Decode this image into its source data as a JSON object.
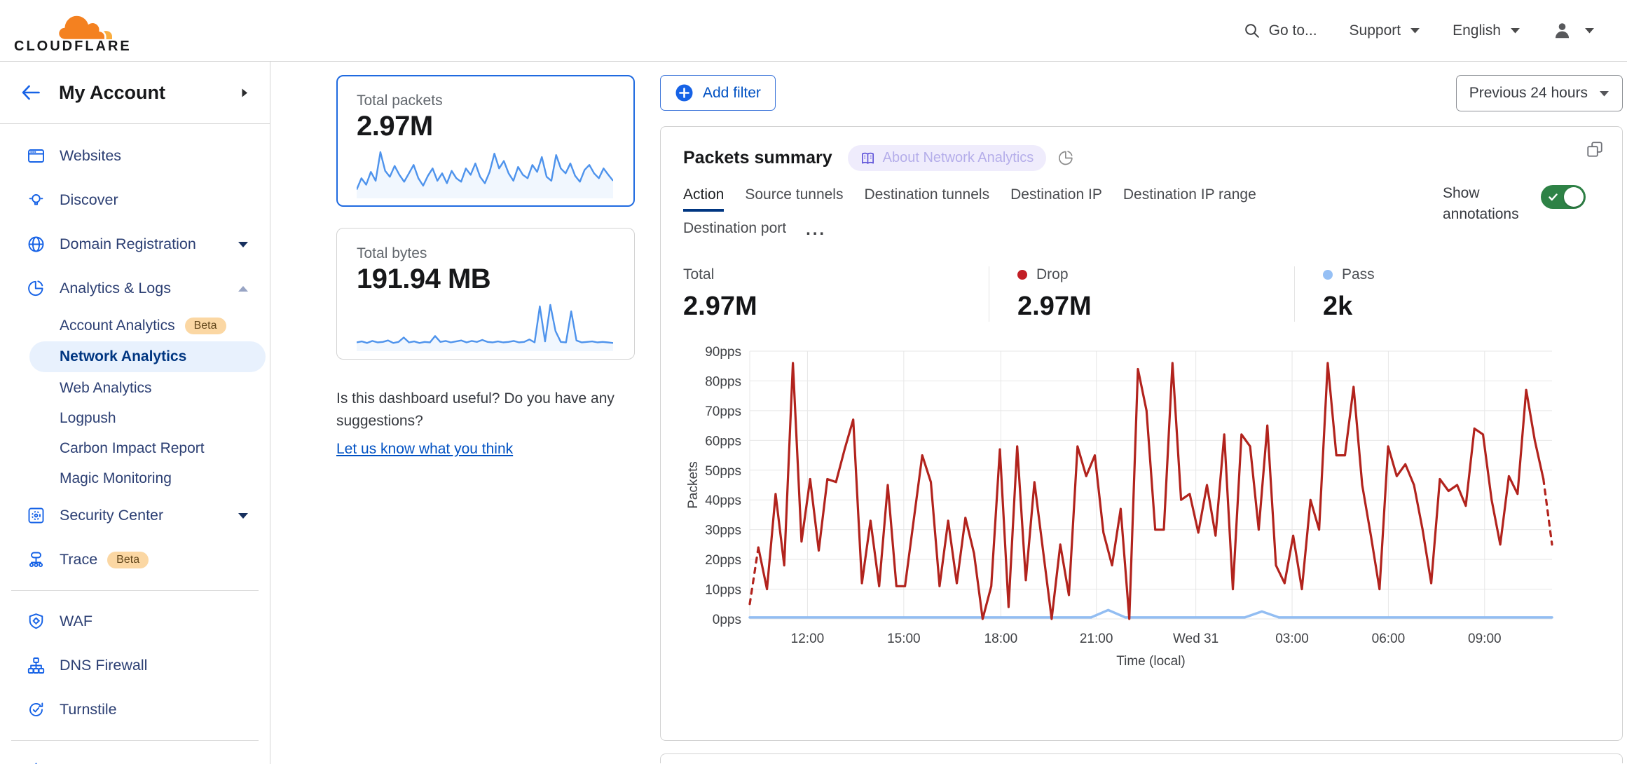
{
  "colors": {
    "accent": "#0051c3",
    "accent_bright": "#1662e6",
    "nav_text": "#2c3f73",
    "active_bg": "#e8f1fd",
    "active_text": "#003681",
    "beta_bg": "#fbd7a3",
    "beta_text": "#63481d",
    "drop": "#b2231d",
    "pass": "#92bdf2",
    "toggle_green": "#2e8246",
    "spark": "#4e93ec",
    "badge_bg": "#efecfc",
    "badge_text": "#b5aeea",
    "badge_icon": "#5c50d8",
    "border": "#d5d5d5",
    "card_border": "#d2d2d2"
  },
  "header": {
    "logo_text": "CLOUDFLARE",
    "goto_label": "Go to...",
    "support_label": "Support",
    "language_label": "English"
  },
  "sidebar": {
    "account_label": "My Account",
    "items": [
      {
        "label": "Websites"
      },
      {
        "label": "Discover"
      },
      {
        "label": "Domain Registration"
      },
      {
        "label": "Analytics & Logs"
      },
      {
        "label": "Security Center"
      },
      {
        "label": "Trace",
        "badge": "Beta"
      },
      {
        "label": "WAF"
      },
      {
        "label": "DNS Firewall"
      },
      {
        "label": "Turnstile"
      }
    ],
    "analytics_children": [
      {
        "label": "Account Analytics",
        "badge": "Beta"
      },
      {
        "label": "Network Analytics",
        "active": true
      },
      {
        "label": "Web Analytics"
      },
      {
        "label": "Logpush"
      },
      {
        "label": "Carbon Impact Report"
      },
      {
        "label": "Magic Monitoring"
      }
    ]
  },
  "overview": {
    "total_packets": {
      "label": "Total packets",
      "value": "2.97M"
    },
    "total_bytes": {
      "label": "Total bytes",
      "value": "191.94 MB"
    },
    "feedback_question": "Is this dashboard useful? Do you have any suggestions?",
    "feedback_link": "Let us know what you think"
  },
  "main": {
    "add_filter_label": "Add filter",
    "time_range_label": "Previous 24 hours",
    "card_title": "Packets summary",
    "about_badge": "About Network Analytics",
    "tabs": [
      "Action",
      "Source tunnels",
      "Destination tunnels",
      "Destination IP",
      "Destination IP range",
      "Destination port"
    ],
    "more_label": "...",
    "show_annotations_label": "Show annotations",
    "annotations_on": true,
    "stats": [
      {
        "label": "Total",
        "value": "2.97M"
      },
      {
        "label": "Drop",
        "value": "2.97M",
        "dot": "#c21e25"
      },
      {
        "label": "Pass",
        "value": "2k",
        "dot": "#96c0f5"
      }
    ]
  },
  "chart_data": [
    {
      "name": "packets-summary-chart",
      "type": "line",
      "title": "Packets summary",
      "xlabel": "Time (local)",
      "ylabel": "Packets",
      "unit": "pps",
      "ylim": [
        0,
        90
      ],
      "ytick_step": 10,
      "grid": true,
      "legend_position": "none",
      "x_ticks": [
        {
          "label": "12:00",
          "f": 0.072
        },
        {
          "label": "15:00",
          "f": 0.192
        },
        {
          "label": "18:00",
          "f": 0.313
        },
        {
          "label": "21:00",
          "f": 0.432
        },
        {
          "label": "Wed 31",
          "f": 0.556
        },
        {
          "label": "03:00",
          "f": 0.676
        },
        {
          "label": "06:00",
          "f": 0.796
        },
        {
          "label": "09:00",
          "f": 0.916
        }
      ],
      "series": [
        {
          "name": "Pass",
          "color": "#92bdf2",
          "width": 3.5,
          "values": [
            0.5,
            0.5,
            0.5,
            0.5,
            0.5,
            0.5,
            0.5,
            0.5,
            0.5,
            0.5,
            0.5,
            0.5,
            0.5,
            0.5,
            0.5,
            0.5,
            0.5,
            0.5,
            0.5,
            0.5,
            0.5,
            3,
            0.5,
            0.5,
            0.5,
            0.5,
            0.5,
            0.5,
            0.5,
            0.5,
            2.5,
            0.5,
            0.5,
            0.5,
            0.5,
            0.5,
            0.5,
            0.5,
            0.5,
            0.5,
            0.5,
            0.5,
            0.5,
            0.5,
            0.5,
            0.5,
            0.5,
            0.5
          ]
        },
        {
          "name": "Drop",
          "color": "#b2231d",
          "width": 3.2,
          "dashed_ends": true,
          "values": [
            5,
            24,
            10,
            42,
            18,
            86,
            26,
            47,
            23,
            47,
            46,
            57,
            67,
            12,
            33,
            11,
            45,
            11,
            11,
            33,
            55,
            46,
            11,
            33,
            12,
            34,
            22,
            0,
            11,
            57,
            4,
            58,
            13,
            46,
            23,
            0,
            25,
            8,
            58,
            48,
            55,
            29,
            18,
            37,
            0,
            84,
            70,
            30,
            30,
            86,
            40,
            42,
            29,
            45,
            28,
            62,
            10,
            62,
            58,
            30,
            65,
            18,
            12,
            28,
            10,
            40,
            30,
            86,
            55,
            55,
            78,
            45,
            28,
            10,
            58,
            48,
            52,
            45,
            30,
            12,
            47,
            43,
            45,
            38,
            64,
            62,
            40,
            25,
            48,
            42,
            77,
            60,
            47,
            25
          ]
        }
      ]
    },
    {
      "name": "total-packets-sparkline",
      "type": "line",
      "color": "#4e93ec",
      "values": [
        12,
        35,
        22,
        48,
        30,
        88,
        50,
        38,
        60,
        42,
        28,
        45,
        62,
        35,
        20,
        40,
        55,
        30,
        45,
        25,
        50,
        35,
        28,
        55,
        42,
        65,
        38,
        25,
        48,
        85,
        55,
        70,
        45,
        30,
        58,
        42,
        35,
        62,
        48,
        78,
        38,
        30,
        82,
        55,
        45,
        65,
        40,
        28,
        52,
        62,
        45,
        35,
        55,
        42,
        30
      ]
    },
    {
      "name": "total-bytes-sparkline",
      "type": "line",
      "color": "#4e93ec",
      "values": [
        12,
        14,
        11,
        15,
        12,
        13,
        16,
        11,
        13,
        22,
        12,
        14,
        11,
        13,
        12,
        25,
        13,
        15,
        12,
        14,
        16,
        12,
        15,
        13,
        17,
        13,
        12,
        14,
        12,
        13,
        15,
        12,
        13,
        18,
        12,
        85,
        14,
        88,
        35,
        13,
        12,
        75,
        16,
        12,
        13,
        14,
        12,
        13,
        12,
        11
      ]
    }
  ]
}
